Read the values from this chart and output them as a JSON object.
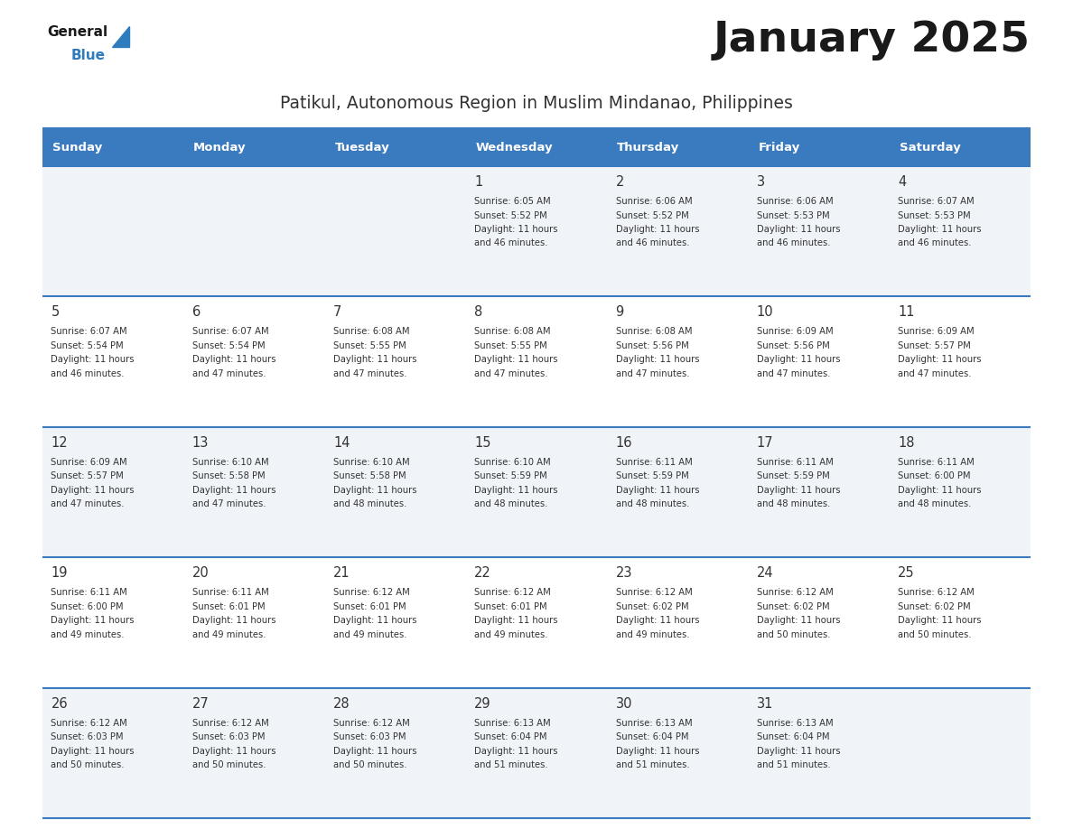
{
  "title": "January 2025",
  "subtitle": "Patikul, Autonomous Region in Muslim Mindanao, Philippines",
  "days_of_week": [
    "Sunday",
    "Monday",
    "Tuesday",
    "Wednesday",
    "Thursday",
    "Friday",
    "Saturday"
  ],
  "header_bg": "#3a7abf",
  "header_text": "#ffffff",
  "row_bg_odd": "#f0f4f8",
  "row_bg_even": "#ffffff",
  "cell_text_color": "#333333",
  "day_num_color": "#333333",
  "border_color": "#3a7abf",
  "title_color": "#1a1a1a",
  "subtitle_color": "#333333",
  "logo_general_color": "#1a1a1a",
  "logo_blue_color": "#2e7bbe",
  "calendar_data": {
    "1": {
      "sunrise": "6:05 AM",
      "sunset": "5:52 PM",
      "daylight_hours": 11,
      "daylight_minutes": 46
    },
    "2": {
      "sunrise": "6:06 AM",
      "sunset": "5:52 PM",
      "daylight_hours": 11,
      "daylight_minutes": 46
    },
    "3": {
      "sunrise": "6:06 AM",
      "sunset": "5:53 PM",
      "daylight_hours": 11,
      "daylight_minutes": 46
    },
    "4": {
      "sunrise": "6:07 AM",
      "sunset": "5:53 PM",
      "daylight_hours": 11,
      "daylight_minutes": 46
    },
    "5": {
      "sunrise": "6:07 AM",
      "sunset": "5:54 PM",
      "daylight_hours": 11,
      "daylight_minutes": 46
    },
    "6": {
      "sunrise": "6:07 AM",
      "sunset": "5:54 PM",
      "daylight_hours": 11,
      "daylight_minutes": 47
    },
    "7": {
      "sunrise": "6:08 AM",
      "sunset": "5:55 PM",
      "daylight_hours": 11,
      "daylight_minutes": 47
    },
    "8": {
      "sunrise": "6:08 AM",
      "sunset": "5:55 PM",
      "daylight_hours": 11,
      "daylight_minutes": 47
    },
    "9": {
      "sunrise": "6:08 AM",
      "sunset": "5:56 PM",
      "daylight_hours": 11,
      "daylight_minutes": 47
    },
    "10": {
      "sunrise": "6:09 AM",
      "sunset": "5:56 PM",
      "daylight_hours": 11,
      "daylight_minutes": 47
    },
    "11": {
      "sunrise": "6:09 AM",
      "sunset": "5:57 PM",
      "daylight_hours": 11,
      "daylight_minutes": 47
    },
    "12": {
      "sunrise": "6:09 AM",
      "sunset": "5:57 PM",
      "daylight_hours": 11,
      "daylight_minutes": 47
    },
    "13": {
      "sunrise": "6:10 AM",
      "sunset": "5:58 PM",
      "daylight_hours": 11,
      "daylight_minutes": 47
    },
    "14": {
      "sunrise": "6:10 AM",
      "sunset": "5:58 PM",
      "daylight_hours": 11,
      "daylight_minutes": 48
    },
    "15": {
      "sunrise": "6:10 AM",
      "sunset": "5:59 PM",
      "daylight_hours": 11,
      "daylight_minutes": 48
    },
    "16": {
      "sunrise": "6:11 AM",
      "sunset": "5:59 PM",
      "daylight_hours": 11,
      "daylight_minutes": 48
    },
    "17": {
      "sunrise": "6:11 AM",
      "sunset": "5:59 PM",
      "daylight_hours": 11,
      "daylight_minutes": 48
    },
    "18": {
      "sunrise": "6:11 AM",
      "sunset": "6:00 PM",
      "daylight_hours": 11,
      "daylight_minutes": 48
    },
    "19": {
      "sunrise": "6:11 AM",
      "sunset": "6:00 PM",
      "daylight_hours": 11,
      "daylight_minutes": 49
    },
    "20": {
      "sunrise": "6:11 AM",
      "sunset": "6:01 PM",
      "daylight_hours": 11,
      "daylight_minutes": 49
    },
    "21": {
      "sunrise": "6:12 AM",
      "sunset": "6:01 PM",
      "daylight_hours": 11,
      "daylight_minutes": 49
    },
    "22": {
      "sunrise": "6:12 AM",
      "sunset": "6:01 PM",
      "daylight_hours": 11,
      "daylight_minutes": 49
    },
    "23": {
      "sunrise": "6:12 AM",
      "sunset": "6:02 PM",
      "daylight_hours": 11,
      "daylight_minutes": 49
    },
    "24": {
      "sunrise": "6:12 AM",
      "sunset": "6:02 PM",
      "daylight_hours": 11,
      "daylight_minutes": 50
    },
    "25": {
      "sunrise": "6:12 AM",
      "sunset": "6:02 PM",
      "daylight_hours": 11,
      "daylight_minutes": 50
    },
    "26": {
      "sunrise": "6:12 AM",
      "sunset": "6:03 PM",
      "daylight_hours": 11,
      "daylight_minutes": 50
    },
    "27": {
      "sunrise": "6:12 AM",
      "sunset": "6:03 PM",
      "daylight_hours": 11,
      "daylight_minutes": 50
    },
    "28": {
      "sunrise": "6:12 AM",
      "sunset": "6:03 PM",
      "daylight_hours": 11,
      "daylight_minutes": 50
    },
    "29": {
      "sunrise": "6:13 AM",
      "sunset": "6:04 PM",
      "daylight_hours": 11,
      "daylight_minutes": 51
    },
    "30": {
      "sunrise": "6:13 AM",
      "sunset": "6:04 PM",
      "daylight_hours": 11,
      "daylight_minutes": 51
    },
    "31": {
      "sunrise": "6:13 AM",
      "sunset": "6:04 PM",
      "daylight_hours": 11,
      "daylight_minutes": 51
    }
  },
  "first_col": 3,
  "num_days": 31,
  "num_rows": 5
}
